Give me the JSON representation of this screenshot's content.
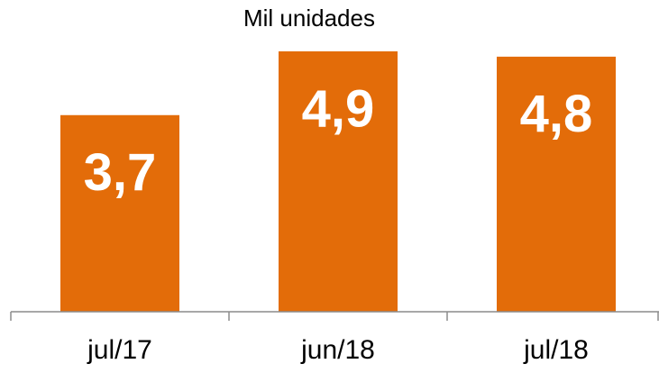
{
  "chart_data": {
    "type": "bar",
    "title": "Mil unidades",
    "categories": [
      "jul/17",
      "jun/18",
      "jul/18"
    ],
    "values": [
      3.7,
      4.9,
      4.8
    ],
    "value_labels": [
      "3,7",
      "4,9",
      "4,8"
    ],
    "color": "#e36c09"
  }
}
